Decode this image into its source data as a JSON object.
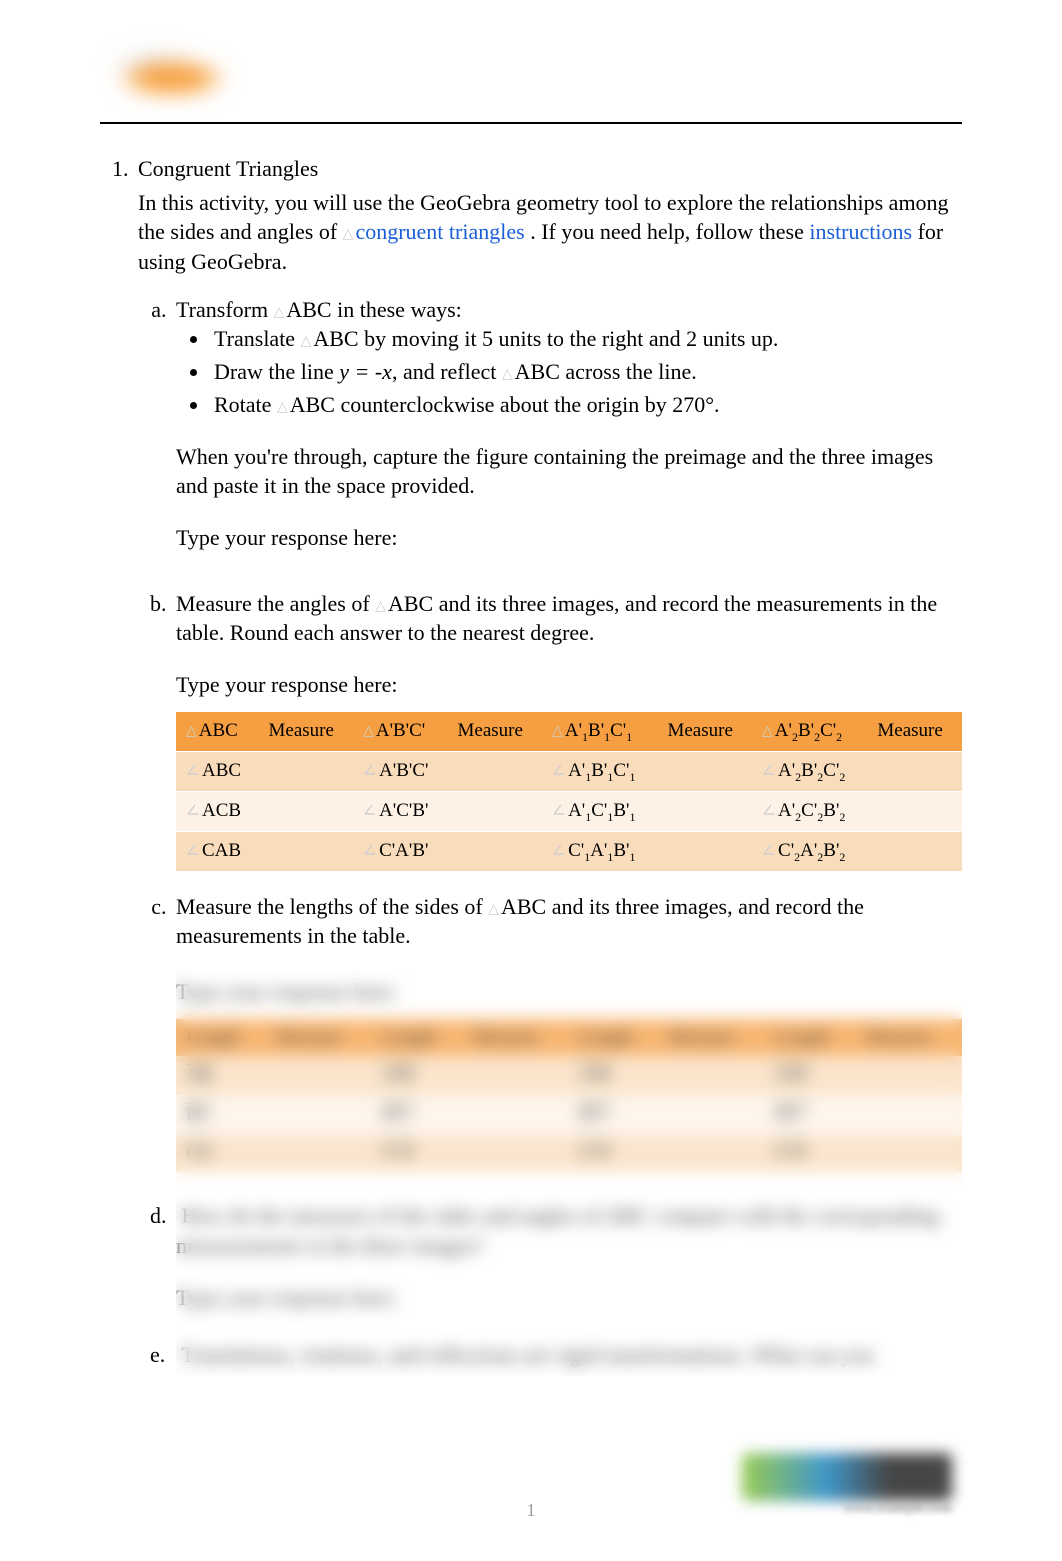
{
  "colors": {
    "link": "#1a5fd6",
    "header_row_bg": "#f59e42",
    "odd_row_bg": "#f9dcbb",
    "even_row_bg": "#fef2e6",
    "text": "#000000",
    "page_rule": "#000000",
    "blur_gray": "#cfcfcf"
  },
  "typography": {
    "body_family": "Times New Roman",
    "body_size_pt": 16,
    "sub_size_pt": 9
  },
  "section": {
    "number": "1.",
    "title": "Congruent Triangles",
    "intro_prefix": "In this activity, you will use the GeoGebra geometry tool to explore the relationships among the sides and angles of ",
    "intro_link1": "congruent triangles",
    "intro_mid": ". If you need help, follow these ",
    "intro_link2": "instructions",
    "intro_suffix": " for using GeoGebra.",
    "response_label": "Type your response here:"
  },
  "part_a": {
    "lead": "Transform ",
    "lead_tri": "ABC",
    "lead_tail": " in these ways:",
    "bullets": [
      {
        "pre": "Translate ",
        "tri": "ABC",
        "post": " by moving it 5 units to the right and 2 units up."
      },
      {
        "pre": "Draw the line   ",
        "eq": "y = -x",
        "post": ", and reflect ",
        "tri": "ABC",
        "post2": " across the line."
      },
      {
        "pre": "Rotate ",
        "tri": "ABC",
        "post": " counterclockwise about the origin by 270°."
      }
    ],
    "closing": "When you're through, capture the figure containing the preimage and the three images and paste it in the space provided."
  },
  "part_b": {
    "text_pre": "Measure the angles of ",
    "text_tri": "ABC",
    "text_post": " and its three images, and record the measurements in the table. Round each answer to the nearest degree."
  },
  "part_c": {
    "text_pre": "Measure the lengths of the sides of ",
    "text_tri": "ABC",
    "text_post": " and its three images, and record the measurements in the table."
  },
  "angle_table": {
    "header_bg": "#f59e42",
    "row_bgs": [
      "#f9dcbb",
      "#fef2e6",
      "#f9dcbb"
    ],
    "col_widths_pct": [
      8,
      11,
      11,
      11,
      14,
      11,
      14,
      11
    ],
    "headers": [
      {
        "glyph": "tri",
        "label": "ABC"
      },
      {
        "label": "Measure"
      },
      {
        "glyph": "tri",
        "label": "A'B'C'"
      },
      {
        "label": "Measure"
      },
      {
        "glyph": "tri",
        "label": "A'",
        "sub": "1",
        "label2": "B'",
        "sub2": "1",
        "label3": "C'",
        "sub3": "1"
      },
      {
        "label": "Measure"
      },
      {
        "glyph": "tri",
        "label": "A'",
        "sub": "2",
        "label2": "B'",
        "sub2": "2",
        "label3": "C'",
        "sub3": "2"
      },
      {
        "label": "Measure"
      }
    ],
    "rows": [
      [
        {
          "glyph": "ang",
          "label": "ABC"
        },
        "",
        {
          "glyph": "ang",
          "label": "A'B'C'"
        },
        "",
        {
          "glyph": "ang",
          "label": "A'",
          "sub": "1",
          "label2": "B'",
          "sub2": "1",
          "label3": "C'",
          "sub3": "1"
        },
        "",
        {
          "glyph": "ang",
          "label": "A'",
          "sub": "2",
          "label2": "B'",
          "sub2": "2",
          "label3": "C'",
          "sub3": "2"
        },
        ""
      ],
      [
        {
          "glyph": "ang",
          "label": "ACB"
        },
        "",
        {
          "glyph": "ang",
          "label": "A'C'B'"
        },
        "",
        {
          "glyph": "ang",
          "label": "A'",
          "sub": "1",
          "label2": "C'",
          "sub2": "1",
          "label3": "B'",
          "sub3": "1"
        },
        "",
        {
          "glyph": "ang",
          "label": "A'",
          "sub": "2",
          "label2": "C'",
          "sub2": "2",
          "label3": "B'",
          "sub3": "2"
        },
        ""
      ],
      [
        {
          "glyph": "ang",
          "label": "CAB"
        },
        "",
        {
          "glyph": "ang",
          "label": "C'A'B'"
        },
        "",
        {
          "glyph": "ang",
          "label": "C'",
          "sub": "1",
          "label2": "A'",
          "sub2": "1",
          "label3": "B'",
          "sub3": "1"
        },
        "",
        {
          "glyph": "ang",
          "label": "C'",
          "sub": "2",
          "label2": "A'",
          "sub2": "2",
          "label3": "B'",
          "sub3": "2"
        },
        ""
      ]
    ]
  },
  "length_table": {
    "header_bg": "#f59e42",
    "row_bgs": [
      "#f9dcbb",
      "#fef2e6",
      "#f9dcbb"
    ],
    "headers": [
      {
        "label": "Length"
      },
      {
        "label": "Measure"
      },
      {
        "label": "Length"
      },
      {
        "label": "Measure"
      },
      {
        "label": "Length"
      },
      {
        "label": "Measure"
      },
      {
        "label": "Length"
      },
      {
        "label": "Measure"
      }
    ],
    "rows": [
      [
        {
          "seg": "AB"
        },
        "",
        {
          "seg": "A'B'"
        },
        "",
        {
          "seg": "A'B'"
        },
        "",
        {
          "seg": "A'B'"
        },
        ""
      ],
      [
        {
          "seg": "BC"
        },
        "",
        {
          "seg": "B'C'"
        },
        "",
        {
          "seg": "B'C'"
        },
        "",
        {
          "seg": "B'C'"
        },
        ""
      ],
      [
        {
          "seg": "CA"
        },
        "",
        {
          "seg": "C'A'"
        },
        "",
        {
          "seg": "C'A'"
        },
        "",
        {
          "seg": "C'A'"
        },
        ""
      ]
    ]
  },
  "blurred": {
    "part_d": "How do the measures of the sides and angles of            ABC compare with the corresponding measurements in the three images?",
    "part_e": "Translations, rotations, and reflections are rigid transformations. What can you"
  },
  "page_number": "1"
}
